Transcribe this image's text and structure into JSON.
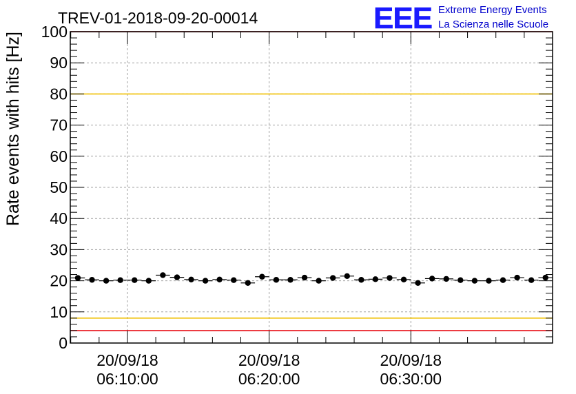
{
  "header": {
    "run_title": "TREV-01-2018-09-20-00014",
    "logo_mark": "EEE",
    "logo_line1": "Extreme Energy Events",
    "logo_line2": "La Scienza nelle Scuole"
  },
  "colors": {
    "red_threshold": "#e8151b",
    "yellow_threshold": "#f0c000",
    "points": "#000000",
    "grid": "#a0a0a0",
    "logo": "#1a1aff"
  },
  "chart_data": {
    "type": "scatter",
    "title": "TREV-01-2018-09-20-00014",
    "ylabel": "Rate events with hits [Hz]",
    "xlabel": "",
    "ylim": [
      0,
      100
    ],
    "yticks": [
      0,
      10,
      20,
      30,
      40,
      50,
      60,
      70,
      80,
      90,
      100
    ],
    "xlim": [
      "20/09/18 06:05:58",
      "20/09/18 06:40:00"
    ],
    "xticks": [
      {
        "t": "20/09/18 06:10:00",
        "date": "20/09/18",
        "time": "06:10:00"
      },
      {
        "t": "20/09/18 06:20:00",
        "date": "20/09/18",
        "time": "06:20:00"
      },
      {
        "t": "20/09/18 06:30:00",
        "date": "20/09/18",
        "time": "06:30:00"
      }
    ],
    "grid": true,
    "reference_lines": [
      {
        "y": 100,
        "color": "red"
      },
      {
        "y": 80,
        "color": "yellow"
      },
      {
        "y": 8,
        "color": "yellow"
      },
      {
        "y": 4,
        "color": "red"
      }
    ],
    "series": [
      {
        "x": [
          "06:06:30",
          "06:07:30",
          "06:08:30",
          "06:09:30",
          "06:10:30",
          "06:11:30",
          "06:12:30",
          "06:13:30",
          "06:14:30",
          "06:15:30",
          "06:16:30",
          "06:17:30",
          "06:18:30",
          "06:19:30",
          "06:20:30",
          "06:21:30",
          "06:22:30",
          "06:23:30",
          "06:24:30",
          "06:25:30",
          "06:26:30",
          "06:27:30",
          "06:28:30",
          "06:29:30",
          "06:30:30",
          "06:31:30",
          "06:32:30",
          "06:33:30",
          "06:34:30",
          "06:35:30",
          "06:36:30",
          "06:37:30",
          "06:38:30",
          "06:39:30"
        ],
        "y": [
          20.9,
          20.3,
          20.0,
          20.2,
          20.2,
          20.0,
          21.8,
          21.1,
          20.4,
          20.0,
          20.4,
          20.2,
          19.3,
          21.3,
          20.3,
          20.3,
          21.0,
          20.0,
          20.9,
          21.5,
          20.3,
          20.5,
          20.9,
          20.4,
          19.3,
          20.7,
          20.6,
          20.2,
          20.0,
          20.0,
          20.2,
          21.0,
          20.2,
          21.0
        ],
        "y_err": 0.8
      }
    ]
  }
}
